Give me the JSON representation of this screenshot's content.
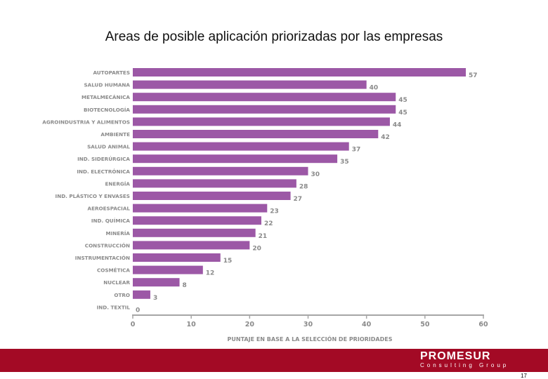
{
  "page": {
    "title": "Areas de posible aplicación priorizadas por las empresas",
    "page_number": "17"
  },
  "footer": {
    "brand_name": "PROMESUR",
    "brand_sub": "Consulting  Group",
    "band_color": "#a30a25"
  },
  "chart_data": {
    "type": "bar",
    "orientation": "horizontal",
    "title": "Areas de posible aplicación priorizadas por las empresas",
    "xlabel": "PUNTAJE EN BASE A LA SELECCIÓN DE PRIORIDADES",
    "ylabel": "",
    "xlim": [
      0,
      60
    ],
    "xticks": [
      0,
      10,
      20,
      30,
      40,
      50,
      60
    ],
    "bar_color": "#9c58a6",
    "label_color": "#8a8a8a",
    "grid": false,
    "categories": [
      "AUTOPARTES",
      "SALUD HUMANA",
      "METALMECÁNICA",
      "BIOTECNOLOGÍA",
      "AGROINDUSTRIA Y ALIMENTOS",
      "AMBIENTE",
      "SALUD ANIMAL",
      "IND. SIDERÚRGICA",
      "IND. ELECTRÓNICA",
      "ENERGÍA",
      "IND. PLÁSTICO Y ENVASES",
      "AEROESPACIAL",
      "IND. QUÍMICA",
      "MINERÍA",
      "CONSTRUCCIÓN",
      "INSTRUMENTACIÓN",
      "COSMÉTICA",
      "NUCLEAR",
      "OTRO",
      "IND. TEXTIL"
    ],
    "values": [
      57,
      40,
      45,
      45,
      44,
      42,
      37,
      35,
      30,
      28,
      27,
      23,
      22,
      21,
      20,
      15,
      12,
      8,
      3,
      0
    ]
  }
}
